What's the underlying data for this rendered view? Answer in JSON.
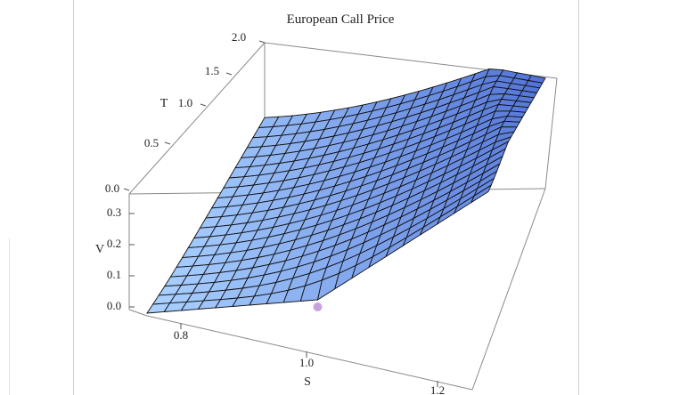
{
  "chart_data": {
    "type": "surface3d",
    "title": "European Call Price",
    "xlabel": "S",
    "ylabel": "T",
    "zlabel": "V",
    "x_ticks": [
      "0.8",
      "1.0",
      "1.2"
    ],
    "y_ticks": [
      "0.0",
      "0.5",
      "1.0",
      "1.5",
      "2.0"
    ],
    "z_ticks": [
      "0.0",
      "0.1",
      "0.2",
      "0.3"
    ],
    "xlim": [
      0.7,
      1.3
    ],
    "ylim": [
      0,
      2
    ],
    "zlim": [
      0,
      0.35
    ],
    "strike": 1.0,
    "mesh_lines": 20,
    "colors": {
      "surface_light": "#a9d0ff",
      "surface_dark": "#4d6fd6",
      "mesh": "#111111",
      "box": "#888888"
    }
  }
}
